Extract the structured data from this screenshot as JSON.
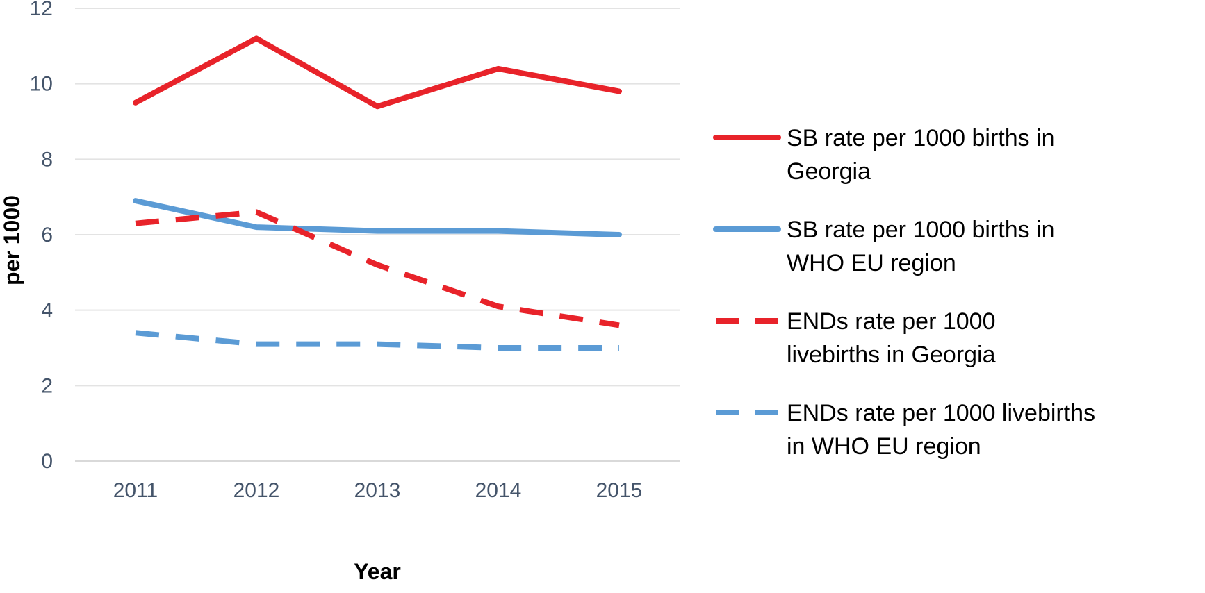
{
  "chart_data": {
    "type": "line",
    "title": "",
    "xlabel": "Year",
    "ylabel": "per 1000",
    "categories": [
      "2011",
      "2012",
      "2013",
      "2014",
      "2015"
    ],
    "ylim": [
      0,
      12
    ],
    "yticks": [
      "0",
      "2",
      "4",
      "6",
      "8",
      "10",
      "12"
    ],
    "grid": true,
    "legend_position": "right",
    "series": [
      {
        "name_lines": [
          "SB rate per 1000 births in",
          "Georgia"
        ],
        "values": [
          9.5,
          11.2,
          9.4,
          10.4,
          9.8
        ],
        "color": "#e8232a",
        "dashed": false
      },
      {
        "name_lines": [
          "SB rate per 1000 births in",
          "WHO EU region"
        ],
        "values": [
          6.9,
          6.2,
          6.1,
          6.1,
          6.0
        ],
        "color": "#5b9bd5",
        "dashed": false
      },
      {
        "name_lines": [
          "ENDs rate per 1000",
          "livebirths in Georgia"
        ],
        "values": [
          6.3,
          6.6,
          5.2,
          4.1,
          3.6
        ],
        "color": "#e8232a",
        "dashed": true
      },
      {
        "name_lines": [
          "ENDs rate per 1000 livebirths",
          "in WHO EU region"
        ],
        "values": [
          3.4,
          3.1,
          3.1,
          3.0,
          3.0
        ],
        "color": "#5b9bd5",
        "dashed": true
      }
    ]
  }
}
